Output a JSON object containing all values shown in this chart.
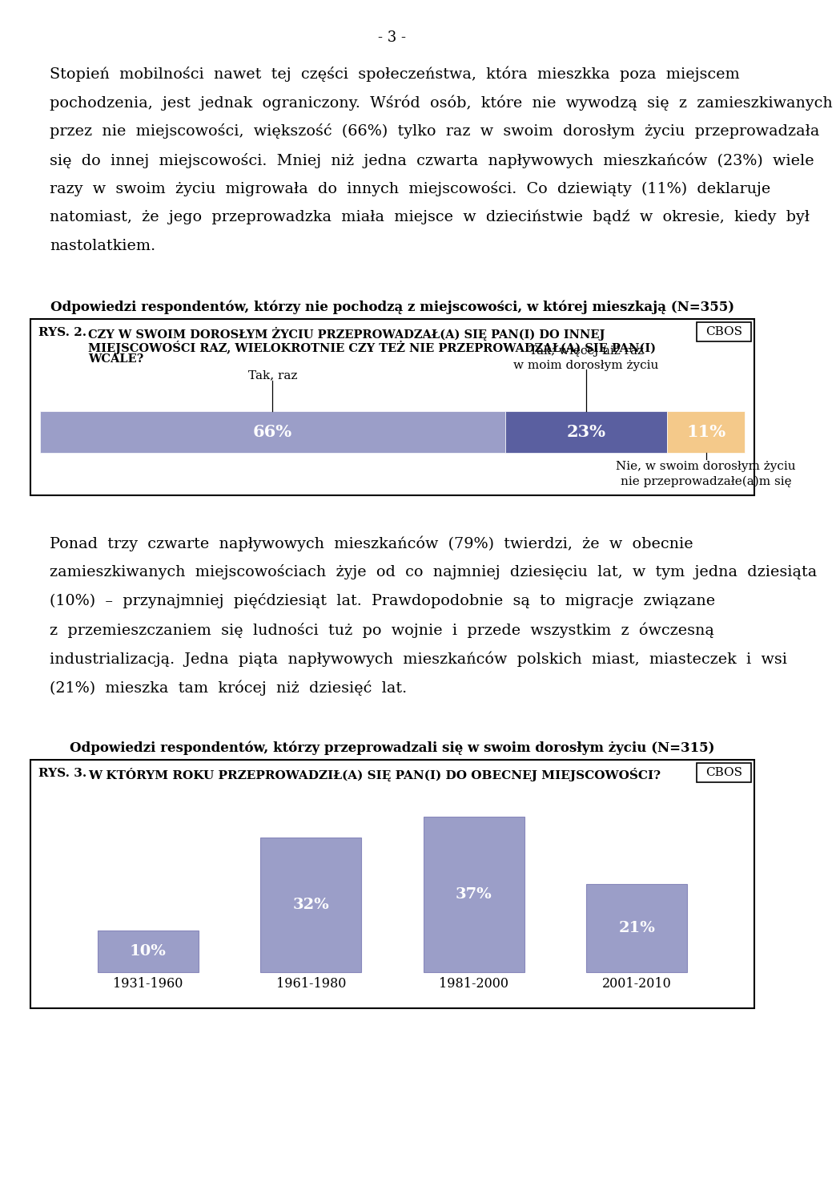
{
  "page_number": "- 3 -",
  "p1_lines": [
    "Stopień  mobilności  nawet  tej  części  społeczeństwa,  która  mieszkka  poza  miejscem",
    "pochodzenia,  jest  jednak  ograniczony.  Wśród  osób,  które  nie  wywodzą  się  z  zamieszkiwanych",
    "przez  nie  miejscowości,  większość  (66%)  tylko  raz  w  swoim  dorosłym  życiu  przeprowadzała",
    "się  do  innej  miejscowości.  Mniej  niż  jedna  czwarta  napływowych  mieszkańców  (23%)  wiele",
    "razy  w  swoim  życiu  migrowała  do  innych  miejscowości.  Co  dziewiąty  (11%)  deklaruje",
    "natomiast,  że  jego  przeprowadzka  miała  miejsce  w  dzieciństwie  bądź  w  okresie,  kiedy  był",
    "nastolatkiem."
  ],
  "p2_lines": [
    "Ponad  trzy  czwarte  napływowych  mieszkańców  (79%)  twierdzi,  że  w  obecnie",
    "zamieszkiwanych  miejscowościach  żyje  od  co  najmniej  dziesięciu  lat,  w  tym  jedna  dziesiąta",
    "(10%)  –  przynajmniej  pięćdziesiąt  lat.  Prawdopodobnie  są  to  migracje  związane",
    "z  przemieszczaniem  się  ludności  tuż  po  wojnie  i  przede  wszystkim  z  ówczesną",
    "industrializacją.  Jedna  piąta  napływowych  mieszkańców  polskich  miast,  miasteczek  i  wsi",
    "(21%)  mieszka  tam  krócej  niż  dziesięć  lat."
  ],
  "chart1_subtitle": "Odpowiedzi respondentów, którzy nie pochodzą z miejscowości, w której mieszkają (N=355)",
  "chart1_rys": "RYS. 2.",
  "chart1_q_lines": [
    "CZY W SWOIM DOROSŁYM ŻYCIU PRZEPROWADZAŁ(A) SIĘ PAN(I) DO INNEJ",
    "MIEJSCOWOŚCI RAZ, WIELOKROTNIE CZY TEŻ NIE PRZEPROWADZAŁ(A) SIĘ PAN(I)",
    "WCALE?"
  ],
  "chart1_segments": [
    66,
    23,
    11
  ],
  "chart1_labels": [
    "66%",
    "23%",
    "11%"
  ],
  "chart1_colors": [
    "#9B9EC8",
    "#5A5FA0",
    "#F4C98A"
  ],
  "chart1_label1": "Tak, raz",
  "chart1_label2": "Tak, więcej niż raz\nw moim dorosłym życiu",
  "chart1_label3": "Nie, w swoim dorosłym życiu\nnie przeprowadzałe(a)m się",
  "chart2_subtitle": "Odpowiedzi respondentów, którzy przeprowadzali się w swoim dorosłym życiu (N=315)",
  "chart2_rys": "RYS. 3.",
  "chart2_question": "W KTÓRYM ROKU PRZEPROWADZIŁ(A) SIĘ PAN(I) DO OBECNEJ MIEJSCOWOŚCI?",
  "chart2_categories": [
    "1931-1960",
    "1961-1980",
    "1981-2000",
    "2001-2010"
  ],
  "chart2_values": [
    10,
    32,
    37,
    21
  ],
  "chart2_labels": [
    "10%",
    "32%",
    "37%",
    "21%"
  ],
  "chart2_bar_color": "#9B9EC8",
  "cbos_label": "CBOS",
  "background_color": "#FFFFFF"
}
